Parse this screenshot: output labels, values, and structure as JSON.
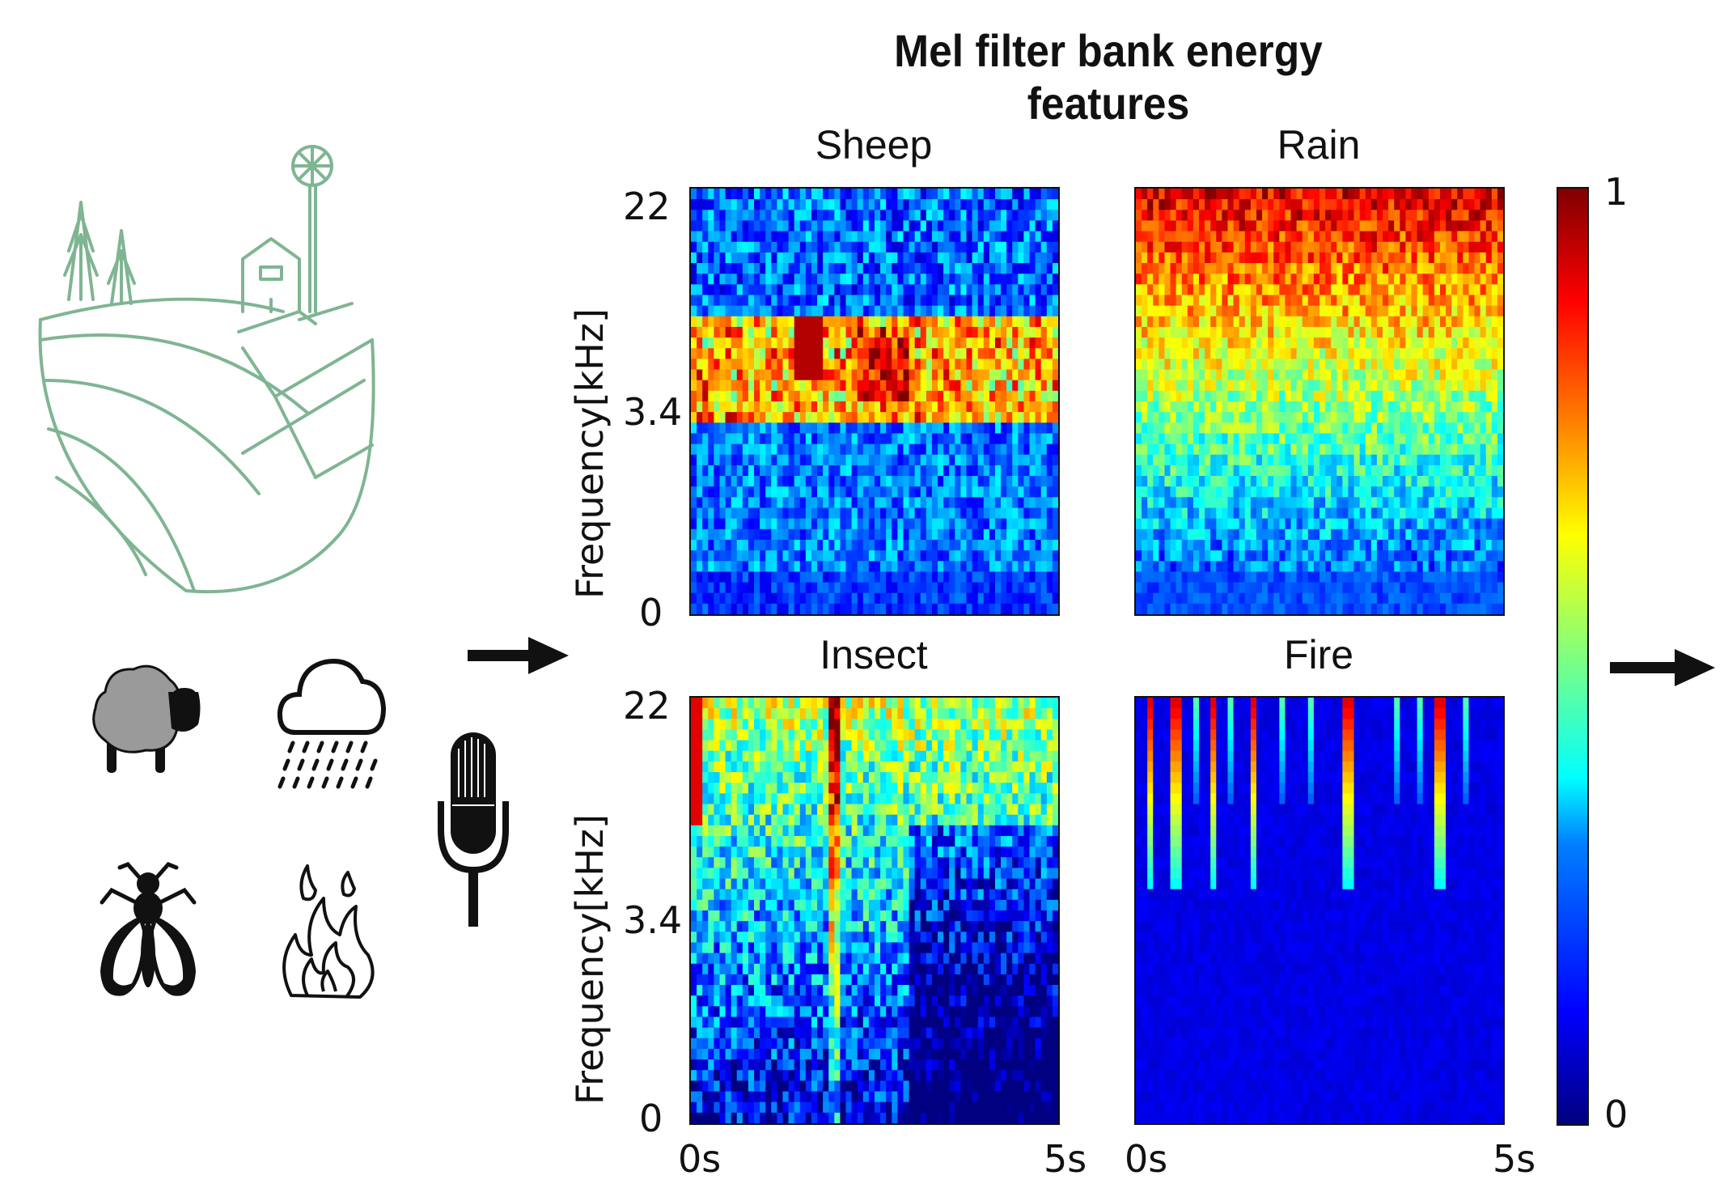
{
  "title": "Mel filter bank energy features",
  "panels": {
    "sheep": {
      "title": "Sheep"
    },
    "rain": {
      "title": "Rain"
    },
    "insect": {
      "title": "Insect"
    },
    "fire": {
      "title": "Fire"
    }
  },
  "axes": {
    "ylabel": "Frequency[kHz]",
    "yticks": [
      "22",
      "3.4",
      "0"
    ],
    "xticks": [
      "0s",
      "5s"
    ]
  },
  "colorbar": {
    "max_label": "1",
    "min_label": "0",
    "colormap": "jet"
  },
  "icons": [
    "farm-landscape-icon",
    "sheep-icon",
    "rain-cloud-icon",
    "insect-icon",
    "fire-icon",
    "microphone-icon",
    "arrow-right-icon"
  ],
  "colors": {
    "landscape_line": "#7fb592",
    "text": "#111111"
  }
}
